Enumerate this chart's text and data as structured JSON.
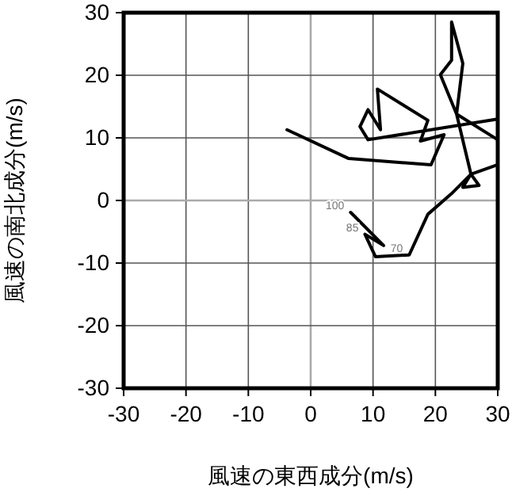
{
  "chart_data": {
    "type": "line",
    "xlabel": "風速の東西成分(m/s)",
    "ylabel": "風速の南北成分(m/s)",
    "xlim": [
      -30,
      30
    ],
    "ylim": [
      -30,
      30
    ],
    "xticks": [
      -30,
      -20,
      -10,
      0,
      10,
      20,
      30
    ],
    "yticks": [
      -30,
      -20,
      -10,
      0,
      10,
      20,
      30
    ],
    "grid": true,
    "series": [
      {
        "color": "#000000",
        "x": [
          6.4,
          11.7,
          8.7,
          10.4,
          15.8,
          18.8,
          22.6,
          25.7,
          24.4,
          27.0,
          25.7,
          30
        ],
        "values": [
          -1.9,
          -7.2,
          -5.4,
          -9.0,
          -8.7,
          -2.2,
          1.1,
          4.2,
          2.1,
          2.4,
          4.2,
          5.7
        ]
      },
      {
        "color": "#000000",
        "x": [
          25.7,
          23.4,
          20.8,
          22.6,
          22.6,
          24.4,
          23.4,
          30
        ],
        "values": [
          4.2,
          13.8,
          20.1,
          22.4,
          28.5,
          21.9,
          13.8,
          9.7
        ]
      },
      {
        "color": "#000000",
        "x": [
          30,
          9.2,
          7.9,
          9.2,
          11.2,
          10.7,
          18.8,
          17.6,
          21.4,
          19.3,
          6.1,
          -3.8
        ],
        "values": [
          13,
          9.7,
          11.8,
          14.5,
          11.3,
          17.8,
          12.8,
          9.5,
          10.5,
          5.7,
          6.7,
          11.3
        ]
      }
    ],
    "annotations": [
      {
        "text": "100",
        "x": 6.4,
        "y": -1.9
      },
      {
        "text": "85",
        "x": 8.7,
        "y": -5.4
      },
      {
        "text": "70",
        "x": 15.8,
        "y": -8.7
      }
    ]
  }
}
